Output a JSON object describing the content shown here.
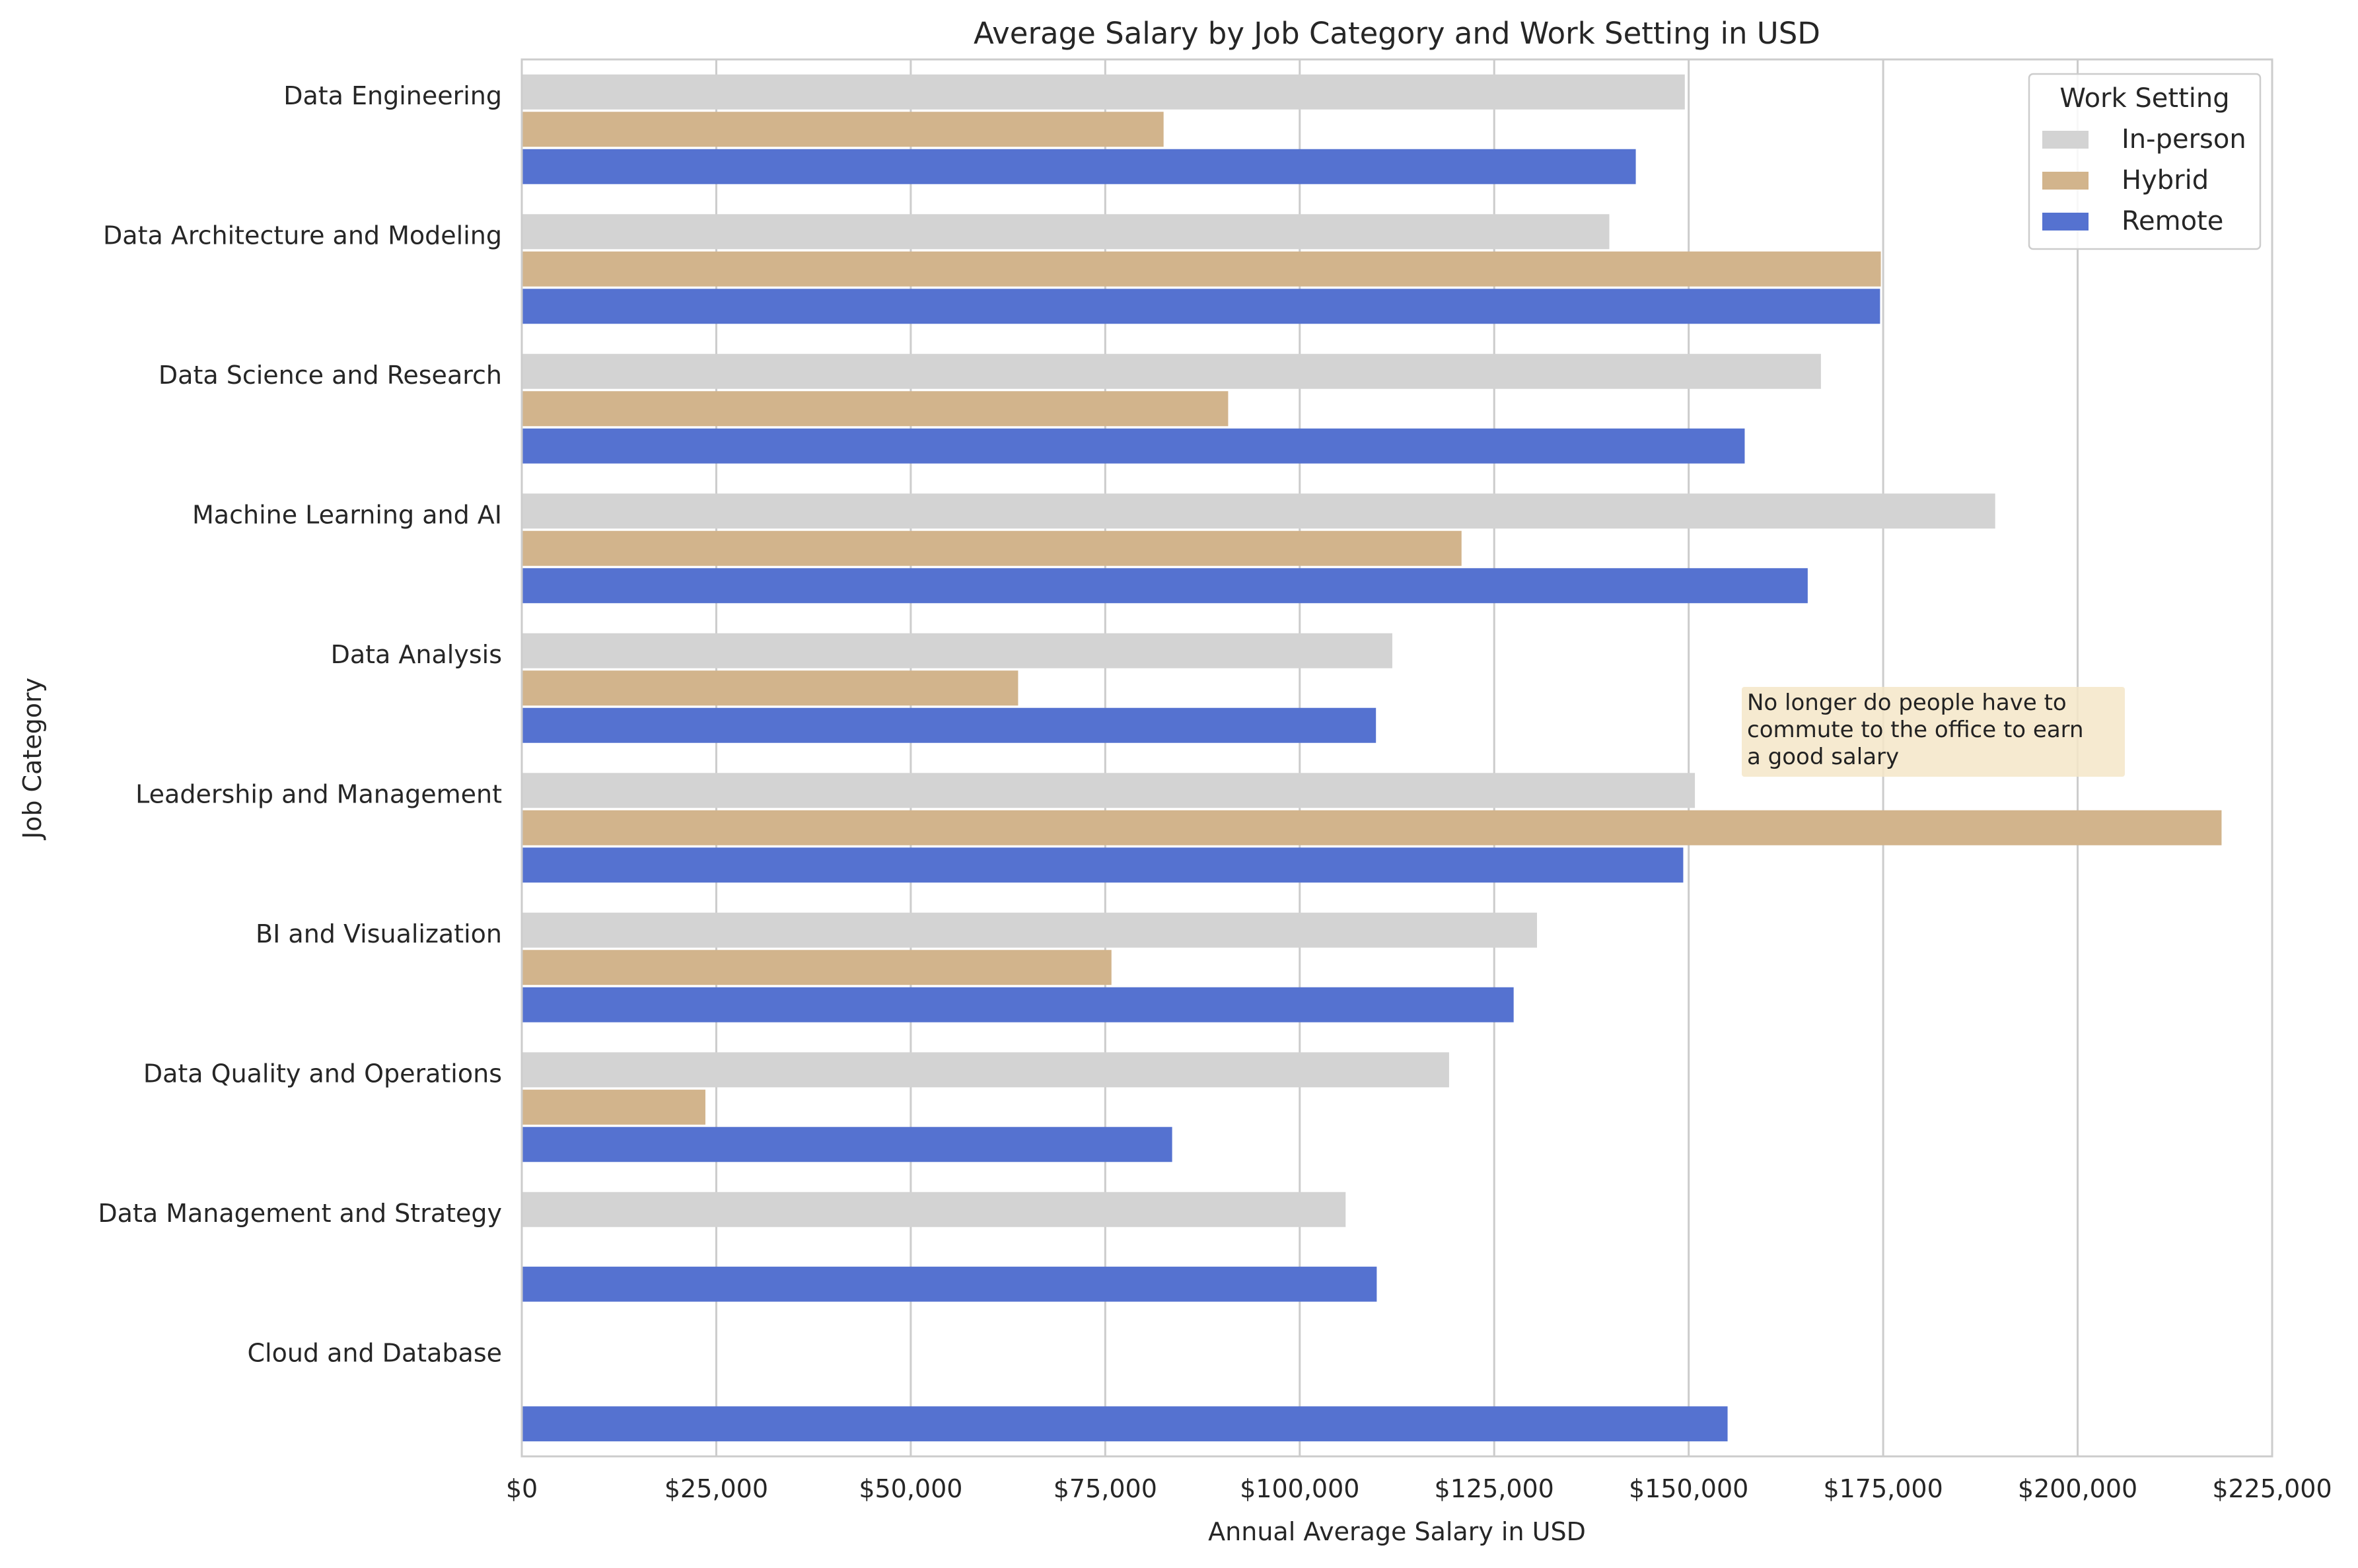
{
  "chart_data": {
    "type": "bar",
    "orientation": "horizontal",
    "title": "Average Salary by Job Category and Work Setting in USD",
    "xlabel": "Annual Average Salary in USD",
    "ylabel": "Job Category",
    "xlim": [
      0,
      225000
    ],
    "x_ticks": [
      0,
      25000,
      50000,
      75000,
      100000,
      125000,
      150000,
      175000,
      200000,
      225000
    ],
    "x_tick_labels": [
      "$0",
      "$25,000",
      "$50,000",
      "$75,000",
      "$100,000",
      "$125,000",
      "$150,000",
      "$175,000",
      "$200,000",
      "$225,000"
    ],
    "grid": "vertical",
    "categories": [
      "Data Engineering",
      "Data Architecture and Modeling",
      "Data Science and Research",
      "Machine Learning and AI",
      "Data Analysis",
      "Leadership and Management",
      "BI and Visualization",
      "Data Quality and Operations",
      "Data Management and Strategy",
      "Cloud and Database"
    ],
    "legend": {
      "title": "Work Setting",
      "placement": "top-right"
    },
    "series": [
      {
        "name": "In-person",
        "color": "#d3d3d3",
        "values": [
          149500,
          139800,
          167000,
          189400,
          111900,
          150800,
          130500,
          119200,
          105900,
          null
        ]
      },
      {
        "name": "Hybrid",
        "color": "#d2b48c",
        "values": [
          82500,
          174700,
          90800,
          120800,
          63800,
          218500,
          75800,
          23600,
          null,
          null
        ]
      },
      {
        "name": "Remote",
        "color": "#5572d0",
        "values": [
          143200,
          174600,
          157200,
          165300,
          109800,
          149300,
          127500,
          83600,
          109900,
          155000
        ]
      }
    ],
    "annotation": {
      "text": [
        "No longer do people have to",
        "commute to the office to earn",
        "a good salary"
      ],
      "background": "#f5e6c8"
    }
  }
}
